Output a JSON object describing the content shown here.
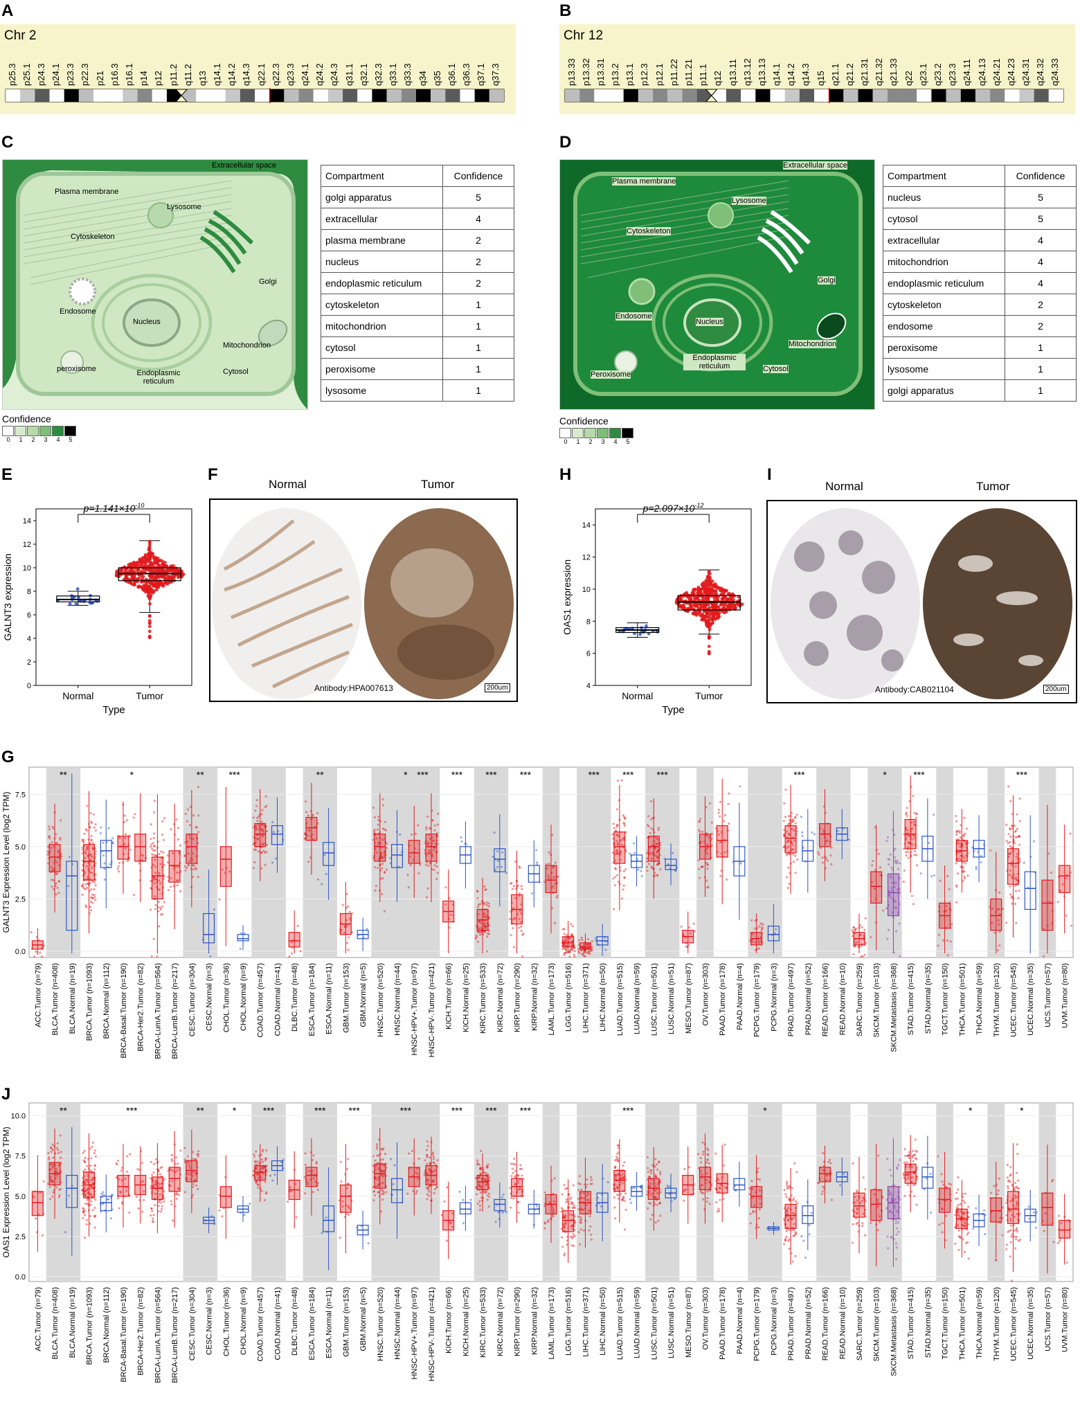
{
  "panels": {
    "A": "A",
    "B": "B",
    "C": "C",
    "D": "D",
    "E": "E",
    "F": "F",
    "G": "G",
    "H": "H",
    "I": "I",
    "J": "J"
  },
  "ideogram_a": {
    "chr": "Chr 2",
    "bands": [
      "p25.3",
      "p25.1",
      "p24.3",
      "p24.1",
      "p23.3",
      "p22.3",
      "p21",
      "p16.3",
      "p16.1",
      "p14",
      "p12",
      "p11.2",
      "q11.2",
      "q13",
      "q14.1",
      "q14.2",
      "q14.3",
      "q22.1",
      "q22.3",
      "q23.3",
      "q24.1",
      "q24.2",
      "q24.3",
      "q31.1",
      "q32.1",
      "q32.3",
      "q33.1",
      "q33.3",
      "q34",
      "q35",
      "q36.1",
      "q36.3",
      "q37.1",
      "q37.3"
    ]
  },
  "ideogram_b": {
    "chr": "Chr 12",
    "bands": [
      "p13.33",
      "p13.32",
      "p13.31",
      "p13.2",
      "p13.1",
      "p12.3",
      "p12.1",
      "p11.22",
      "p11.21",
      "p11.1",
      "q12",
      "q13.11",
      "q13.12",
      "q13.13",
      "q14.1",
      "q14.2",
      "q14.3",
      "q15",
      "q21.1",
      "q21.2",
      "q21.31",
      "q21.32",
      "q21.33",
      "q22",
      "q23.1",
      "q23.2",
      "q23.3",
      "q24.11",
      "q24.13",
      "q24.21",
      "q24.23",
      "q24.31",
      "q24.32",
      "q24.33"
    ]
  },
  "cell_labels": {
    "extracellular": "Extracellular space",
    "plasma": "Plasma membrane",
    "lysosome": "Lysosome",
    "cytoskeleton": "Cytoskeleton",
    "golgi": "Golgi",
    "endosome": "Endosome",
    "nucleus": "Nucleus",
    "mitochondrion": "Mitochondrion",
    "peroxisome": "peroxisome",
    "peroxisome_d": "Peroxisome",
    "er": "Endoplasmic reticulum",
    "cytosol": "Cytosol"
  },
  "table_c": {
    "headers": [
      "Compartment",
      "Confidence"
    ],
    "rows": [
      [
        "golgi apparatus",
        "5"
      ],
      [
        "extracellular",
        "4"
      ],
      [
        "plasma membrane",
        "2"
      ],
      [
        "nucleus",
        "2"
      ],
      [
        "endoplasmic reticulum",
        "2"
      ],
      [
        "cytoskeleton",
        "1"
      ],
      [
        "mitochondrion",
        "1"
      ],
      [
        "cytosol",
        "1"
      ],
      [
        "peroxisome",
        "1"
      ],
      [
        "lysosome",
        "1"
      ]
    ]
  },
  "table_d": {
    "headers": [
      "Compartment",
      "Confidence"
    ],
    "rows": [
      [
        "nucleus",
        "5"
      ],
      [
        "cytosol",
        "5"
      ],
      [
        "extracellular",
        "4"
      ],
      [
        "mitochondrion",
        "4"
      ],
      [
        "endoplasmic reticulum",
        "4"
      ],
      [
        "cytoskeleton",
        "2"
      ],
      [
        "endosome",
        "2"
      ],
      [
        "peroxisome",
        "1"
      ],
      [
        "lysosome",
        "1"
      ],
      [
        "golgi apparatus",
        "1"
      ]
    ]
  },
  "confidence_legend": {
    "title": "Confidence",
    "levels": [
      "0",
      "1",
      "2",
      "3",
      "4",
      "5"
    ],
    "colors": [
      "#ffffff",
      "#d6ebcc",
      "#b5dca8",
      "#7fbf77",
      "#2e8b40",
      "#000000"
    ]
  },
  "ihc_f": {
    "normal": "Normal",
    "tumor": "Tumor",
    "antibody": "Antibody:HPA007613",
    "scale": "200um"
  },
  "ihc_i": {
    "normal": "Normal",
    "tumor": "Tumor",
    "antibody": "Antibody:CAB021104",
    "scale": "200um"
  },
  "colors": {
    "tumor": "#e31a1c",
    "normal": "#2b55c6",
    "metastasis": "#8e44ad",
    "shade": "#d9d9d9"
  },
  "chart_data": [
    {
      "id": "E",
      "type": "scatter",
      "ylabel": "GALNT3 expression",
      "xlabel": "Type",
      "categories": [
        "Normal",
        "Tumor"
      ],
      "ylim": [
        0,
        15
      ],
      "yticks": [
        0,
        2,
        4,
        6,
        8,
        10,
        12,
        14
      ],
      "annotation": "p=1.141×10",
      "annotation_exp": "-10",
      "series": [
        {
          "name": "Normal",
          "median": 7.3,
          "q1": 7.1,
          "q3": 7.6,
          "min": 6.8,
          "max": 8.0,
          "n": 20
        },
        {
          "name": "Tumor",
          "median": 9.5,
          "q1": 8.9,
          "q3": 10.0,
          "min": 6.2,
          "max": 12.3,
          "n": 500,
          "outlier_min": 3.8
        }
      ]
    },
    {
      "id": "H",
      "type": "scatter",
      "ylabel": "OAS1 expression",
      "xlabel": "Type",
      "categories": [
        "Normal",
        "Tumor"
      ],
      "ylim": [
        4,
        15
      ],
      "yticks": [
        4,
        6,
        8,
        10,
        12,
        14
      ],
      "annotation": "p=2.097×10",
      "annotation_exp": "-12",
      "series": [
        {
          "name": "Normal",
          "median": 7.45,
          "q1": 7.3,
          "q3": 7.6,
          "min": 7.0,
          "max": 7.9,
          "n": 20
        },
        {
          "name": "Tumor",
          "median": 9.2,
          "q1": 8.7,
          "q3": 9.6,
          "min": 7.2,
          "max": 11.2,
          "n": 500,
          "outlier_min": 5.8
        }
      ]
    },
    {
      "id": "G",
      "type": "box",
      "ylabel": "GALNT3 Expression Level (log2 TPM)",
      "ylim": [
        -0.3,
        8.8
      ],
      "yticks": [
        "0.0",
        "2.5",
        "5.0",
        "7.5"
      ],
      "categories": [
        "ACC.Tumor (n=79)",
        "BLCA.Tumor (n=408)",
        "BLCA.Normal (n=19)",
        "BRCA.Tumor (n=1093)",
        "BRCA.Normal (n=112)",
        "BRCA-Basal.Tumor (n=190)",
        "BRCA-Her2.Tumor (n=82)",
        "BRCA-LumA.Tumor (n=564)",
        "BRCA-LumB.Tumor (n=217)",
        "CESC.Tumor (n=304)",
        "CESC.Normal (n=3)",
        "CHOL.Tumor (n=36)",
        "CHOL.Normal (n=9)",
        "COAD.Tumor (n=457)",
        "COAD.Normal (n=41)",
        "DLBC.Tumor (n=48)",
        "ESCA.Tumor (n=184)",
        "ESCA.Normal (n=11)",
        "GBM.Tumor (n=153)",
        "GBM.Normal (n=5)",
        "HNSC.Tumor (n=520)",
        "HNSC.Normal (n=44)",
        "HNSC-HPV+.Tumor (n=97)",
        "HNSC-HPV-.Tumor (n=421)",
        "KICH.Tumor (n=66)",
        "KICH.Normal (n=25)",
        "KIRC.Tumor (n=533)",
        "KIRC.Normal (n=72)",
        "KIRP.Tumor (n=290)",
        "KIRP.Normal (n=32)",
        "LAML.Tumor (n=173)",
        "LGG.Tumor (n=516)",
        "LIHC.Tumor (n=371)",
        "LIHC.Normal (n=50)",
        "LUAD.Tumor (n=515)",
        "LUAD.Normal (n=59)",
        "LUSC.Tumor (n=501)",
        "LUSC.Normal (n=51)",
        "MESO.Tumor (n=87)",
        "OV.Tumor (n=303)",
        "PAAD.Tumor (n=178)",
        "PAAD.Normal (n=4)",
        "PCPG.Tumor (n=179)",
        "PCPG.Normal (n=3)",
        "PRAD.Tumor (n=497)",
        "PRAD.Normal (n=52)",
        "READ.Tumor (n=166)",
        "READ.Normal (n=10)",
        "SARC.Tumor (n=259)",
        "SKCM.Tumor (n=103)",
        "SKCM.Metastasis (n=368)",
        "STAD.Tumor (n=415)",
        "STAD.Normal (n=35)",
        "TGCT.Tumor (n=150)",
        "THCA.Tumor (n=501)",
        "THCA.Normal (n=59)",
        "THYM.Tumor (n=120)",
        "UCEC.Tumor (n=545)",
        "UCEC.Normal (n=35)",
        "UCS.Tumor (n=57)",
        "UVM.Tumor (n=80)"
      ],
      "medians": [
        0.3,
        4.5,
        3.6,
        4.3,
        4.8,
        5.0,
        5.0,
        3.6,
        4.1,
        5.0,
        0.8,
        4.4,
        0.6,
        5.6,
        5.6,
        0.5,
        5.9,
        4.7,
        1.3,
        0.8,
        5.0,
        4.6,
        4.7,
        5.0,
        1.9,
        4.6,
        1.5,
        4.4,
        2.0,
        3.7,
        3.4,
        0.4,
        0.2,
        0.5,
        5.0,
        4.3,
        5.0,
        4.1,
        0.7,
        5.0,
        5.3,
        4.3,
        0.6,
        0.8,
        5.4,
        4.8,
        5.6,
        5.6,
        0.6,
        3.1,
        2.8,
        5.6,
        4.9,
        1.7,
        4.8,
        4.9,
        1.7,
        4.2,
        3.0,
        2.3,
        3.6
      ],
      "q1": [
        0.1,
        3.8,
        1.0,
        3.4,
        4.0,
        4.4,
        4.3,
        2.5,
        3.3,
        4.2,
        0.4,
        3.1,
        0.5,
        5.0,
        5.1,
        0.2,
        5.3,
        4.1,
        0.8,
        0.6,
        4.3,
        4.0,
        4.2,
        4.3,
        1.4,
        4.2,
        1.0,
        3.8,
        1.3,
        3.3,
        2.8,
        0.2,
        0.1,
        0.3,
        4.2,
        4.0,
        4.3,
        3.9,
        0.4,
        4.4,
        4.5,
        3.6,
        0.3,
        0.5,
        4.7,
        4.3,
        5.0,
        5.3,
        0.3,
        2.3,
        1.7,
        4.9,
        4.3,
        1.1,
        4.3,
        4.5,
        1.0,
        3.2,
        2.0,
        1.0,
        2.8
      ],
      "q3": [
        0.5,
        5.1,
        4.3,
        5.1,
        5.3,
        5.5,
        5.6,
        4.5,
        4.8,
        5.6,
        1.8,
        5.0,
        0.8,
        6.1,
        6.0,
        0.9,
        6.4,
        5.2,
        1.8,
        1.0,
        5.6,
        5.1,
        5.3,
        5.6,
        2.4,
        5.0,
        2.0,
        4.9,
        2.7,
        4.1,
        4.1,
        0.7,
        0.4,
        0.7,
        5.7,
        4.6,
        5.5,
        4.4,
        1.0,
        5.6,
        6.0,
        5.0,
        0.9,
        1.2,
        6.0,
        5.3,
        6.1,
        5.9,
        0.9,
        3.8,
        3.7,
        6.3,
        5.5,
        2.3,
        5.3,
        5.3,
        2.5,
        4.9,
        3.8,
        3.4,
        4.1
      ],
      "groups": [
        "ACC",
        "BLCA",
        "BRCA",
        "CESC",
        "CHOL",
        "COAD",
        "DLBC",
        "ESCA",
        "GBM",
        "HNSC",
        "KICH",
        "KIRC",
        "KIRP",
        "LAML",
        "LGG",
        "LIHC",
        "LUAD",
        "LUSC",
        "MESO",
        "OV",
        "PAAD",
        "PCPG",
        "PRAD",
        "READ",
        "SARC",
        "SKCM",
        "STAD",
        "TGCT",
        "THCA",
        "THYM",
        "UCEC",
        "UCS",
        "UVM"
      ],
      "group_spans": [
        1,
        2,
        6,
        2,
        2,
        2,
        1,
        2,
        2,
        4,
        2,
        2,
        2,
        1,
        1,
        2,
        2,
        2,
        1,
        1,
        2,
        2,
        2,
        2,
        1,
        2,
        2,
        1,
        2,
        1,
        2,
        1,
        1
      ],
      "stars": [
        {
          "group": "BLCA",
          "text": "**"
        },
        {
          "group": "BRCA",
          "text": "*"
        },
        {
          "group": "CESC",
          "text": "**"
        },
        {
          "group": "CHOL",
          "text": "***"
        },
        {
          "group": "ESCA",
          "text": "**"
        },
        {
          "group": "HNSC",
          "text": "*"
        },
        {
          "group": "HNSC-HPV",
          "text": "***"
        },
        {
          "group": "KICH",
          "text": "***"
        },
        {
          "group": "KIRC",
          "text": "***"
        },
        {
          "group": "KIRP",
          "text": "***"
        },
        {
          "group": "LIHC",
          "text": "***"
        },
        {
          "group": "LUAD",
          "text": "***"
        },
        {
          "group": "LUSC",
          "text": "***"
        },
        {
          "group": "PRAD",
          "text": "***"
        },
        {
          "group": "SKCM",
          "text": "*"
        },
        {
          "group": "STAD",
          "text": "***"
        },
        {
          "group": "UCEC",
          "text": "***"
        }
      ]
    },
    {
      "id": "J",
      "type": "box",
      "ylabel": "OAS1 Expression Level (log2 TPM)",
      "ylim": [
        -0.3,
        10.8
      ],
      "yticks": [
        "0.0",
        "2.5",
        "5.0",
        "7.5",
        "10.0"
      ],
      "categories": [
        "ACC.Tumor (n=79)",
        "BLCA.Tumor (n=408)",
        "BLCA.Normal (n=19)",
        "BRCA.Tumor (n=1093)",
        "BRCA.Normal (n=112)",
        "BRCA-Basal.Tumor (n=190)",
        "BRCA-Her2.Tumor (n=82)",
        "BRCA-LumA.Tumor (n=564)",
        "BRCA-LumB.Tumor (n=217)",
        "CESC.Tumor (n=304)",
        "CESC.Normal (n=3)",
        "CHOL.Tumor (n=36)",
        "CHOL.Normal (n=9)",
        "COAD.Tumor (n=457)",
        "COAD.Normal (n=41)",
        "DLBC.Tumor (n=48)",
        "ESCA.Tumor (n=184)",
        "ESCA.Normal (n=11)",
        "GBM.Tumor (n=153)",
        "GBM.Normal (n=5)",
        "HNSC.Tumor (n=520)",
        "HNSC.Normal (n=44)",
        "HNSC-HPV+.Tumor (n=97)",
        "HNSC-HPV-.Tumor (n=421)",
        "KICH.Tumor (n=66)",
        "KICH.Normal (n=25)",
        "KIRC.Tumor (n=533)",
        "KIRC.Normal (n=72)",
        "KIRP.Tumor (n=290)",
        "KIRP.Normal (n=32)",
        "LAML.Tumor (n=173)",
        "LGG.Tumor (n=516)",
        "LIHC.Tumor (n=371)",
        "LIHC.Normal (n=50)",
        "LUAD.Tumor (n=515)",
        "LUAD.Normal (n=59)",
        "LUSC.Tumor (n=501)",
        "LUSC.Normal (n=51)",
        "MESO.Tumor (n=87)",
        "OV.Tumor (n=303)",
        "PAAD.Tumor (n=178)",
        "PAAD.Normal (n=4)",
        "PCPG.Tumor (n=179)",
        "PCPG.Normal (n=3)",
        "PRAD.Tumor (n=497)",
        "PRAD.Normal (n=52)",
        "READ.Tumor (n=166)",
        "READ.Normal (n=10)",
        "SARC.Tumor (n=259)",
        "SKCM.Tumor (n=103)",
        "SKCM.Metastasis (n=368)",
        "STAD.Tumor (n=415)",
        "STAD.Normal (n=35)",
        "TGCT.Tumor (n=150)",
        "THCA.Tumor (n=501)",
        "THCA.Normal (n=59)",
        "THYM.Tumor (n=120)",
        "UCEC.Tumor (n=545)",
        "UCEC.Normal (n=35)",
        "UCS.Tumor (n=57)",
        "UVM.Tumor (n=80)"
      ],
      "medians": [
        4.6,
        6.4,
        5.5,
        5.7,
        4.6,
        5.6,
        5.7,
        5.5,
        6.1,
        6.6,
        3.5,
        5.0,
        4.2,
        6.5,
        6.9,
        5.4,
        6.3,
        3.5,
        5.0,
        2.9,
        6.4,
        5.4,
        6.2,
        6.3,
        3.5,
        4.2,
        5.9,
        4.5,
        5.6,
        4.2,
        4.5,
        3.5,
        4.6,
        4.6,
        6.0,
        5.3,
        5.5,
        5.2,
        5.7,
        6.2,
        5.8,
        5.7,
        5.0,
        3.0,
        3.8,
        3.8,
        6.4,
        6.2,
        4.4,
        4.5,
        4.6,
        6.5,
        6.2,
        4.8,
        3.6,
        3.5,
        4.1,
        4.2,
        3.8,
        4.3,
        2.9
      ],
      "q1": [
        3.8,
        5.7,
        4.3,
        4.9,
        4.1,
        5.0,
        5.1,
        4.8,
        5.3,
        5.9,
        3.3,
        4.3,
        4.0,
        6.0,
        6.6,
        4.8,
        5.6,
        2.8,
        4.0,
        2.6,
        5.5,
        4.6,
        5.6,
        5.7,
        2.9,
        3.9,
        5.4,
        4.1,
        5.0,
        3.9,
        3.9,
        2.8,
        3.9,
        4.0,
        5.3,
        5.0,
        4.8,
        4.9,
        5.1,
        5.4,
        5.2,
        5.4,
        4.3,
        2.9,
        3.0,
        3.3,
        5.9,
        5.9,
        3.7,
        3.5,
        3.6,
        5.8,
        5.5,
        4.0,
        3.0,
        3.1,
        3.4,
        3.3,
        3.4,
        3.2,
        2.4
      ],
      "q3": [
        5.3,
        7.1,
        6.3,
        6.5,
        5.0,
        6.3,
        6.3,
        6.2,
        6.8,
        7.2,
        3.7,
        5.6,
        4.4,
        6.9,
        7.2,
        6.0,
        6.8,
        4.4,
        5.7,
        3.2,
        7.0,
        6.1,
        6.8,
        6.9,
        4.1,
        4.6,
        6.3,
        4.8,
        6.1,
        4.5,
        5.1,
        4.1,
        5.3,
        5.2,
        6.6,
        5.6,
        6.1,
        5.5,
        6.3,
        6.8,
        6.4,
        6.1,
        5.6,
        3.1,
        4.5,
        4.4,
        6.8,
        6.5,
        5.2,
        5.4,
        5.6,
        7.0,
        6.8,
        5.5,
        4.2,
        3.9,
        4.9,
        5.3,
        4.2,
        5.2,
        3.5
      ],
      "groups": [
        "ACC",
        "BLCA",
        "BRCA",
        "CESC",
        "CHOL",
        "COAD",
        "DLBC",
        "ESCA",
        "GBM",
        "HNSC",
        "KICH",
        "KIRC",
        "KIRP",
        "LAML",
        "LGG",
        "LIHC",
        "LUAD",
        "LUSC",
        "MESO",
        "OV",
        "PAAD",
        "PCPG",
        "PRAD",
        "READ",
        "SARC",
        "SKCM",
        "STAD",
        "TGCT",
        "THCA",
        "THYM",
        "UCEC",
        "UCS",
        "UVM"
      ],
      "group_spans": [
        1,
        2,
        6,
        2,
        2,
        2,
        1,
        2,
        2,
        4,
        2,
        2,
        2,
        1,
        1,
        2,
        2,
        2,
        1,
        1,
        2,
        2,
        2,
        2,
        1,
        2,
        2,
        1,
        2,
        1,
        2,
        1,
        1
      ],
      "stars": [
        {
          "group": "BLCA",
          "text": "**"
        },
        {
          "group": "BRCA",
          "text": "***"
        },
        {
          "group": "CESC",
          "text": "**"
        },
        {
          "group": "CHOL",
          "text": "*"
        },
        {
          "group": "COAD",
          "text": "***"
        },
        {
          "group": "ESCA",
          "text": "***"
        },
        {
          "group": "GBM",
          "text": "***"
        },
        {
          "group": "HNSC",
          "text": "***"
        },
        {
          "group": "KICH",
          "text": "***"
        },
        {
          "group": "KIRC",
          "text": "***"
        },
        {
          "group": "KIRP",
          "text": "***"
        },
        {
          "group": "LUAD",
          "text": "***"
        },
        {
          "group": "PCPG",
          "text": "*"
        },
        {
          "group": "THCA",
          "text": "*"
        },
        {
          "group": "UCEC",
          "text": "*"
        }
      ]
    }
  ]
}
